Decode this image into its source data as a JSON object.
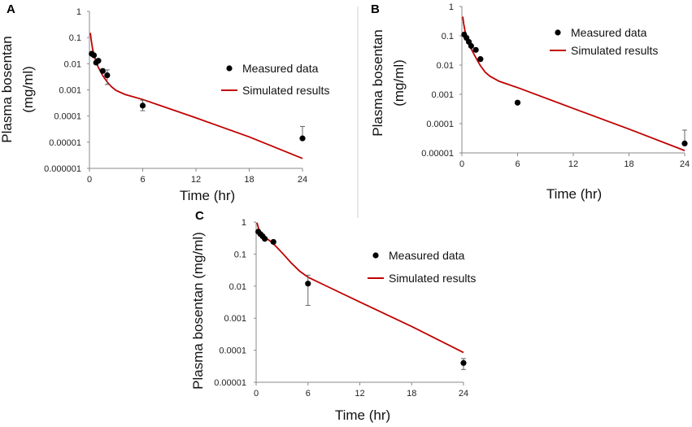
{
  "colors": {
    "simulated": "#c00000",
    "measured": "#000000",
    "axis": "#8a8a8a",
    "divider": "#d0d0d0"
  },
  "chart_data": [
    {
      "panel": "A",
      "type": "line",
      "xlabel": "Time (hr)",
      "ylabel_line1": "Plasma bosentan",
      "ylabel_line2": "(mg/ml)",
      "xlim": [
        0,
        24
      ],
      "x_ticks": [
        0,
        6,
        12,
        18,
        24
      ],
      "y_scale": "log",
      "y_ticks": [
        1,
        0.1,
        0.01,
        0.001,
        0.0001,
        1e-05,
        1e-06
      ],
      "y_tick_labels": [
        "1",
        "0.1",
        "0.01",
        "0.001",
        "0.0001",
        "0.00001",
        "0.000001"
      ],
      "ylim": [
        1e-06,
        1
      ],
      "legend": {
        "measured": "Measured data",
        "simulated": "Simulated results",
        "placement": "right-middle"
      },
      "measured": [
        {
          "x": 0.25,
          "y": 0.024
        },
        {
          "x": 0.5,
          "y": 0.021
        },
        {
          "x": 0.75,
          "y": 0.011
        },
        {
          "x": 1.0,
          "y": 0.013
        },
        {
          "x": 1.5,
          "y": 0.0053
        },
        {
          "x": 2.0,
          "y": 0.0036,
          "err_hi": 0.0058,
          "err_lo": 0.0016
        },
        {
          "x": 6.0,
          "y": 0.00025,
          "err_hi": 0.0004,
          "err_lo": 0.00016
        },
        {
          "x": 24.0,
          "y": 1.4e-05,
          "err_hi": 4e-05
        }
      ],
      "simulated": {
        "x": [
          0.1,
          0.2,
          0.35,
          0.5,
          0.75,
          1.0,
          1.5,
          2.0,
          2.5,
          3.0,
          4.0,
          6.0,
          12.0,
          18.0,
          24.0
        ],
        "y": [
          0.15,
          0.08,
          0.038,
          0.022,
          0.012,
          0.0072,
          0.0035,
          0.002,
          0.0013,
          0.00095,
          0.00067,
          0.00043,
          8.5e-05,
          1.6e-05,
          2.4e-06
        ]
      }
    },
    {
      "panel": "B",
      "type": "line",
      "xlabel": "Time (hr)",
      "ylabel_line1": "Plasma bosentan",
      "ylabel_line2": "(mg/ml)",
      "xlim": [
        0,
        24
      ],
      "x_ticks": [
        0,
        6,
        12,
        18,
        24
      ],
      "y_scale": "log",
      "y_ticks": [
        1,
        0.1,
        0.01,
        0.001,
        0.0001,
        1e-05
      ],
      "y_tick_labels": [
        "1",
        "0.1",
        "0.01",
        "0.001",
        "0.0001",
        "0.00001"
      ],
      "ylim": [
        1e-05,
        1
      ],
      "legend": {
        "measured": "Measured data",
        "simulated": "Simulated results",
        "placement": "top-right"
      },
      "measured": [
        {
          "x": 0.25,
          "y": 0.11
        },
        {
          "x": 0.5,
          "y": 0.085
        },
        {
          "x": 0.75,
          "y": 0.062
        },
        {
          "x": 1.0,
          "y": 0.045
        },
        {
          "x": 1.5,
          "y": 0.033
        },
        {
          "x": 2.0,
          "y": 0.016
        },
        {
          "x": 6.0,
          "y": 0.00052
        },
        {
          "x": 24.0,
          "y": 2.1e-05,
          "err_hi": 6e-05
        }
      ],
      "simulated": {
        "x": [
          0.1,
          0.2,
          0.35,
          0.5,
          0.75,
          1.0,
          1.5,
          2.0,
          2.5,
          3.0,
          4.0,
          6.0,
          12.0,
          18.0,
          24.0
        ],
        "y": [
          0.45,
          0.25,
          0.14,
          0.09,
          0.055,
          0.036,
          0.018,
          0.0095,
          0.0058,
          0.0042,
          0.0028,
          0.0017,
          0.00033,
          6.5e-05,
          1.2e-05
        ]
      }
    },
    {
      "panel": "C",
      "type": "line",
      "xlabel": "Time (hr)",
      "ylabel_line1": "Plasma bosentan (mg/ml)",
      "ylabel_line2": "",
      "xlim": [
        0,
        24
      ],
      "x_ticks": [
        0,
        6,
        12,
        18,
        24
      ],
      "y_scale": "log",
      "y_ticks": [
        1,
        0.1,
        0.01,
        0.001,
        0.0001,
        1e-05
      ],
      "y_tick_labels": [
        "1",
        "0.1",
        "0.01",
        "0.001",
        "0.0001",
        "0.00001"
      ],
      "ylim": [
        1e-05,
        1
      ],
      "legend": {
        "measured": "Measured data",
        "simulated": "Simulated results",
        "placement": "top-right"
      },
      "measured": [
        {
          "x": 0.25,
          "y": 0.5
        },
        {
          "x": 0.5,
          "y": 0.42
        },
        {
          "x": 0.75,
          "y": 0.36
        },
        {
          "x": 1.0,
          "y": 0.3
        },
        {
          "x": 2.0,
          "y": 0.24
        },
        {
          "x": 6.0,
          "y": 0.012,
          "err_hi": 0.022,
          "err_lo": 0.0025
        },
        {
          "x": 24.0,
          "y": 4e-05,
          "err_hi": 5.5e-05,
          "err_lo": 2.5e-05
        }
      ],
      "simulated": {
        "x": [
          0.1,
          0.3,
          0.5,
          0.75,
          1.0,
          1.5,
          2.0,
          3.0,
          4.0,
          5.0,
          6.0,
          8.0,
          12.0,
          18.0,
          24.0
        ],
        "y": [
          0.95,
          0.6,
          0.45,
          0.38,
          0.33,
          0.27,
          0.21,
          0.11,
          0.055,
          0.03,
          0.019,
          0.0105,
          0.0032,
          0.00055,
          8.5e-05
        ]
      }
    }
  ]
}
